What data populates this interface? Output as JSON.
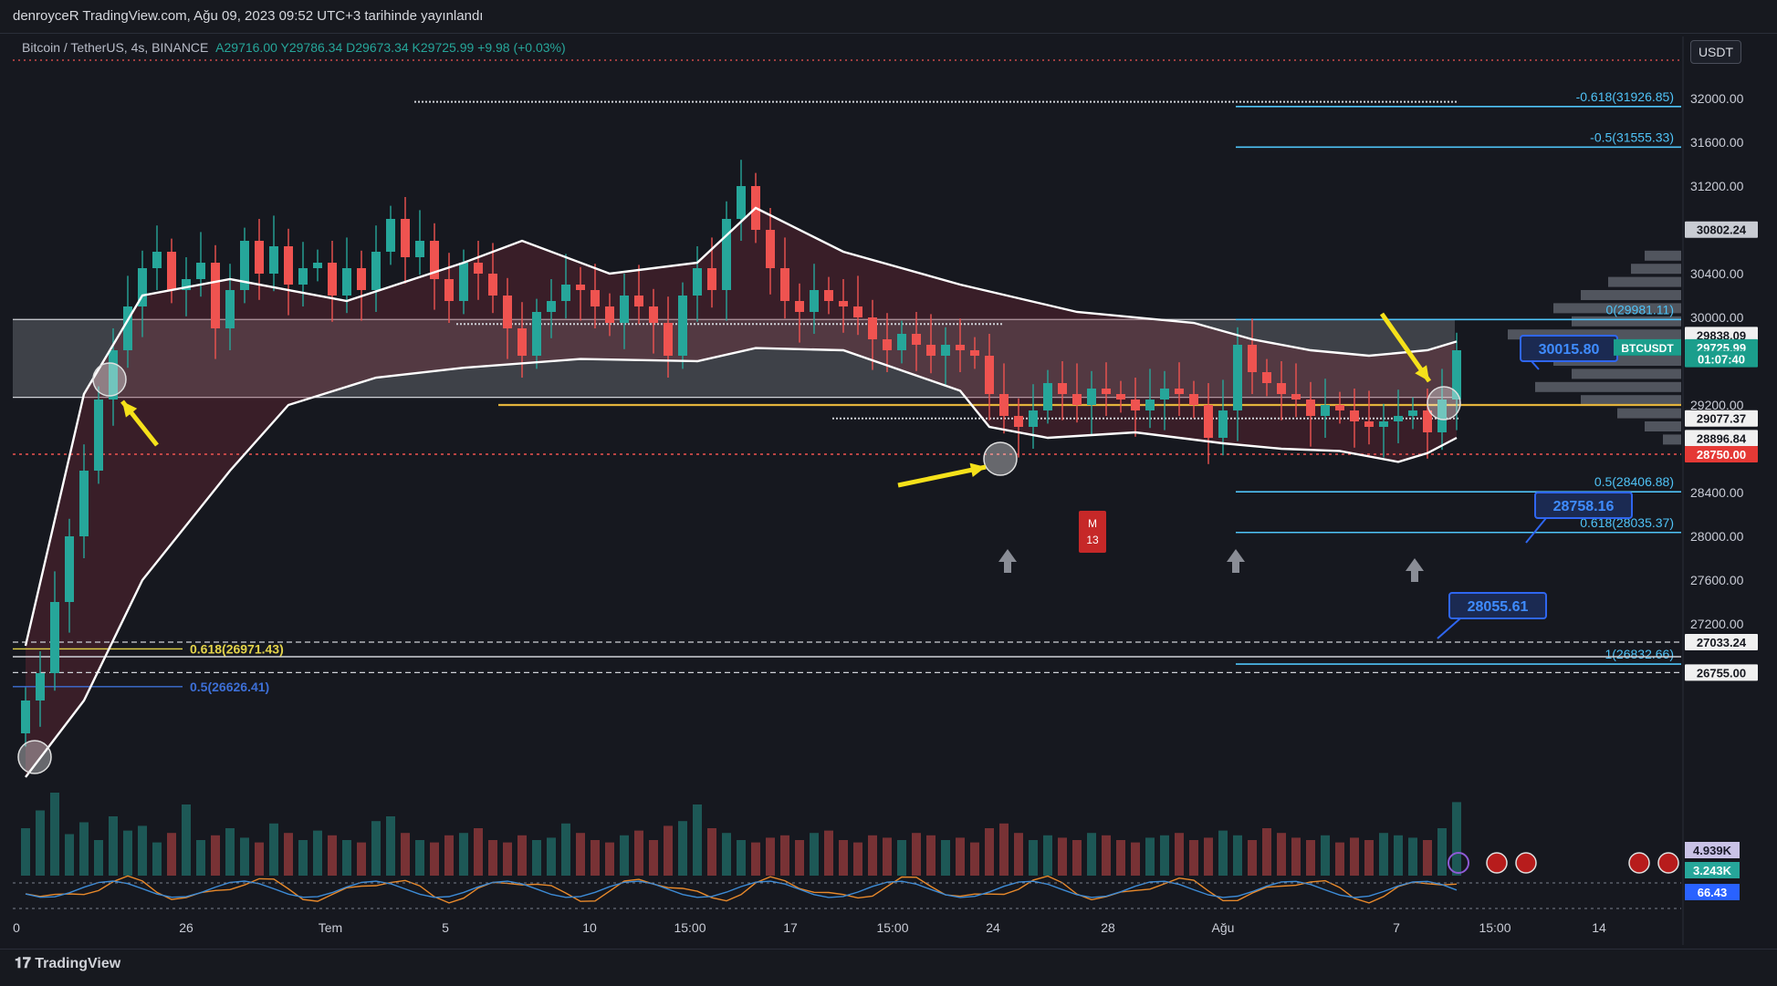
{
  "header": {
    "published": "denroyceR TradingView.com, Ağu 09, 2023 09:52 UTC+3 tarihinde yayınlandı"
  },
  "legend": {
    "symbol": "Bitcoin / TetherUS, 4s, BINANCE",
    "ohlc": "A29716.00  Y29786.34  D29673.34  K29725.99  +9.98 (+0.03%)"
  },
  "currency_button": "USDT",
  "footer": {
    "brand": "TradingView"
  },
  "colors": {
    "background": "#16181f",
    "up": "#26a69a",
    "down": "#ef5350",
    "fib": "#4fc3f7",
    "band": "#ffffff",
    "zone": "#a8abb5",
    "volume_profile": "#9aa0ab",
    "yellow_line": "#e3b33c",
    "dotted_red": "#ef5350"
  },
  "chart_data": {
    "type": "candlestick",
    "symbol": "BTCUSDT",
    "timeframe": "4s",
    "ylim": [
      25600,
      32500
    ],
    "x_ticks": [
      "0",
      "26",
      "Tem",
      "5",
      "10",
      "15:00",
      "17",
      "15:00",
      "24",
      "28",
      "Ağu",
      "7",
      "15:00",
      "14"
    ],
    "y_ticks": [
      "32000.00",
      "31600.00",
      "31200.00",
      "30400.00",
      "30000.00",
      "29200.00",
      "28400.00",
      "28000.00",
      "27600.00",
      "27200.00"
    ],
    "price_labels": [
      {
        "text": "30802.24",
        "value": 30802.24,
        "bg": "#c9ccd3",
        "fg": "#16181f"
      },
      {
        "text": "29838.09",
        "value": 29838.09,
        "bg": "#f0f0f0",
        "fg": "#16181f"
      },
      {
        "text": "29725.99",
        "value": 29725.99,
        "bg": "#1b9e8c",
        "fg": "#ffffff"
      },
      {
        "text": "01:07:40",
        "value": 29620,
        "bg": "#1b9e8c",
        "fg": "#ffffff"
      },
      {
        "text": "29077.37",
        "value": 29077.37,
        "bg": "#f0f0f0",
        "fg": "#16181f"
      },
      {
        "text": "28896.84",
        "value": 28896.84,
        "bg": "#f0f0f0",
        "fg": "#16181f"
      },
      {
        "text": "28750.00",
        "value": 28750.0,
        "bg": "#e53935",
        "fg": "#ffffff"
      },
      {
        "text": "27033.24",
        "value": 27033.24,
        "bg": "#f0f0f0",
        "fg": "#16181f"
      },
      {
        "text": "26755.00",
        "value": 26755.0,
        "bg": "#f0f0f0",
        "fg": "#16181f"
      }
    ],
    "indicator_labels": [
      {
        "text": "4.939K",
        "bg": "#c9c2e6",
        "fg": "#1a1a2a"
      },
      {
        "text": "3.243K",
        "bg": "#26a69a",
        "fg": "#ffffff"
      },
      {
        "text": "66.43",
        "bg": "#2962ff",
        "fg": "#ffffff"
      }
    ],
    "ticker_tag": "BTCUSDT",
    "fib_levels": [
      {
        "label": "-0.618(31926.85)",
        "value": 31926.85
      },
      {
        "label": "-0.5(31555.33)",
        "value": 31555.33
      },
      {
        "label": "0(29981.11)",
        "value": 29981.11
      },
      {
        "label": "0.5(28406.88)",
        "value": 28406.88
      },
      {
        "label": "0.618(28035.37)",
        "value": 28035.37
      },
      {
        "label": "1(26832.66)",
        "value": 26832.66
      }
    ],
    "left_fib_labels": [
      {
        "label": "0.618(26971.43)",
        "value": 26971.43
      },
      {
        "label": "0.5(26626.41)",
        "value": 26626.41
      }
    ],
    "callouts": [
      {
        "text": "30015.80",
        "value": 30015.8
      },
      {
        "text": "28758.16",
        "value": 28758.16
      },
      {
        "text": "28055.61",
        "value": 28055.61
      }
    ],
    "zone": {
      "top": 29981.11,
      "bottom": 29270
    },
    "yellow_level": 29200,
    "dotted_levels": [
      29980,
      29077.37,
      28750
    ],
    "marker_tag": {
      "line1": "M",
      "line2": "13"
    },
    "closes": [
      26500,
      26750,
      27400,
      28000,
      28600,
      29250,
      29700,
      30100,
      30450,
      30600,
      30250,
      30350,
      30500,
      29900,
      30250,
      30700,
      30400,
      30650,
      30300,
      30450,
      30500,
      30200,
      30450,
      30250,
      30600,
      30900,
      30550,
      30700,
      30350,
      30150,
      30500,
      30400,
      30200,
      29900,
      29650,
      30050,
      30150,
      30300,
      30250,
      30100,
      29950,
      30200,
      30100,
      29950,
      29650,
      30200,
      30450,
      30250,
      30900,
      31200,
      30800,
      30450,
      30150,
      30050,
      30250,
      30150,
      30100,
      30000,
      29800,
      29700,
      29850,
      29750,
      29650,
      29750,
      29700,
      29650,
      29300,
      29100,
      29000,
      29150,
      29400,
      29300,
      29200,
      29350,
      29300,
      29250,
      29150,
      29250,
      29350,
      29300,
      29200,
      28900,
      29150,
      29750,
      29500,
      29400,
      29300,
      29250,
      29100,
      29200,
      29150,
      29050,
      29000,
      29050,
      29100,
      29150,
      28950,
      29250,
      29700
    ],
    "upper_band_points": [
      [
        0,
        27000
      ],
      [
        4,
        29300
      ],
      [
        8,
        30200
      ],
      [
        14,
        30350
      ],
      [
        22,
        30150
      ],
      [
        30,
        30500
      ],
      [
        34,
        30700
      ],
      [
        40,
        30400
      ],
      [
        46,
        30500
      ],
      [
        50,
        31000
      ],
      [
        56,
        30600
      ],
      [
        64,
        30300
      ],
      [
        72,
        30050
      ],
      [
        80,
        29950
      ],
      [
        84,
        29800
      ],
      [
        88,
        29700
      ],
      [
        92,
        29650
      ],
      [
        96,
        29700
      ],
      [
        98,
        29780
      ]
    ],
    "lower_band_points": [
      [
        0,
        25800
      ],
      [
        4,
        26500
      ],
      [
        8,
        27600
      ],
      [
        14,
        28600
      ],
      [
        18,
        29200
      ],
      [
        24,
        29450
      ],
      [
        30,
        29540
      ],
      [
        38,
        29620
      ],
      [
        46,
        29600
      ],
      [
        50,
        29720
      ],
      [
        56,
        29700
      ],
      [
        64,
        29330
      ],
      [
        66,
        29000
      ],
      [
        70,
        28900
      ],
      [
        76,
        28950
      ],
      [
        82,
        28850
      ],
      [
        86,
        28800
      ],
      [
        90,
        28780
      ],
      [
        94,
        28680
      ],
      [
        96,
        28760
      ],
      [
        98,
        28900
      ]
    ],
    "volume": [
      40,
      55,
      70,
      35,
      45,
      30,
      50,
      38,
      42,
      28,
      36,
      60,
      30,
      34,
      40,
      32,
      28,
      44,
      36,
      30,
      38,
      34,
      30,
      28,
      46,
      50,
      36,
      30,
      28,
      34,
      36,
      40,
      30,
      28,
      34,
      30,
      32,
      44,
      36,
      30,
      28,
      34,
      38,
      30,
      42,
      46,
      60,
      40,
      36,
      30,
      28,
      32,
      34,
      30,
      36,
      38,
      30,
      28,
      34,
      32,
      30,
      36,
      34,
      30,
      32,
      28,
      40,
      44,
      36,
      30,
      34,
      32,
      30,
      36,
      34,
      30,
      28,
      32,
      34,
      36,
      30,
      32,
      38,
      34,
      30,
      40,
      36,
      32,
      30,
      34,
      28,
      32,
      30,
      36,
      34,
      32,
      30,
      40,
      62
    ]
  }
}
